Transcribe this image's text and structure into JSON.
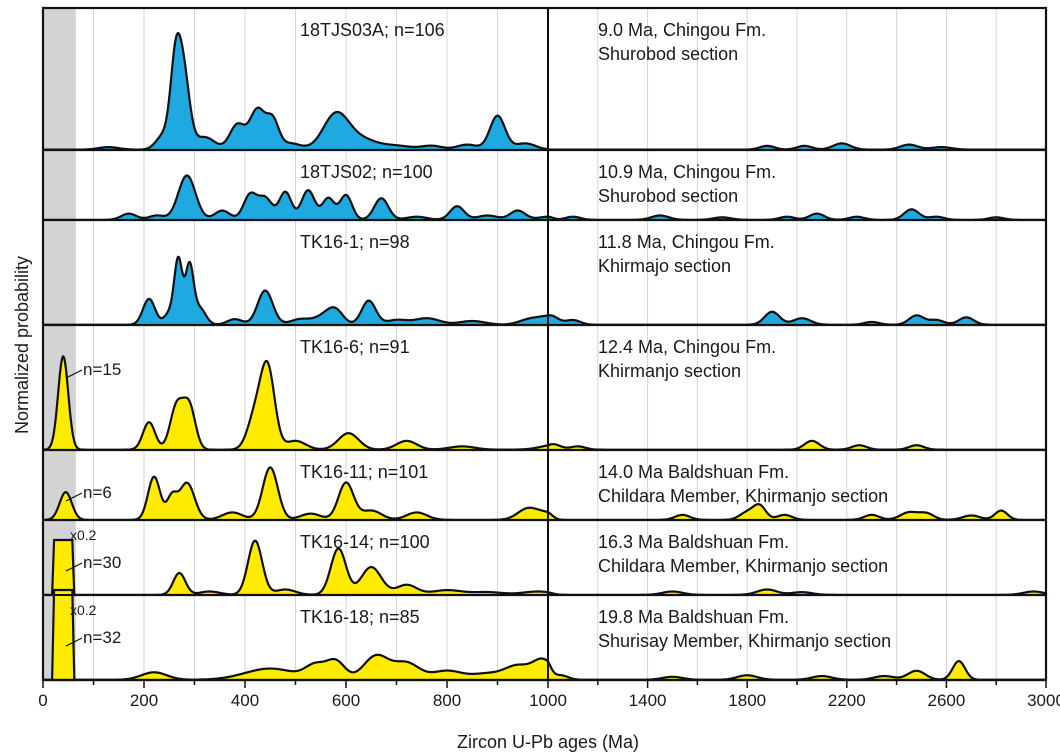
{
  "chart_data": {
    "type": "area",
    "x_axis": {
      "label": "Zircon U-Pb ages (Ma)",
      "ticks": [
        "0",
        "200",
        "400",
        "600",
        "800",
        "1000",
        "1400",
        "1800",
        "2200",
        "2600",
        "3000"
      ],
      "break_scale": "0–1000 Ma linear, 1000–3000 Ma compressed scale"
    },
    "y_axis": {
      "label": "Normalized  probability"
    },
    "shaded_band_ma": [
      0,
      65
    ],
    "grid": true,
    "panels": [
      {
        "sample": "18TJS03A; n=106",
        "context": [
          "9.0 Ma, Chingou Fm.",
          "Shurobod section"
        ],
        "fill": "#1fa9e1",
        "n_label": "",
        "scale_note": "",
        "peaks": [
          [
            130,
            0.02,
            20
          ],
          [
            240,
            0.12,
            15
          ],
          [
            262,
            0.58,
            10
          ],
          [
            278,
            0.6,
            12
          ],
          [
            320,
            0.1,
            20
          ],
          [
            385,
            0.2,
            15
          ],
          [
            425,
            0.32,
            15
          ],
          [
            455,
            0.22,
            12
          ],
          [
            490,
            0.05,
            20
          ],
          [
            580,
            0.28,
            25
          ],
          [
            630,
            0.08,
            30
          ],
          [
            700,
            0.03,
            30
          ],
          [
            770,
            0.03,
            20
          ],
          [
            840,
            0.04,
            20
          ],
          [
            900,
            0.27,
            15
          ],
          [
            955,
            0.05,
            20
          ],
          [
            1880,
            0.03,
            30
          ],
          [
            2030,
            0.03,
            30
          ],
          [
            2180,
            0.05,
            35
          ],
          [
            2450,
            0.04,
            35
          ],
          [
            2580,
            0.02,
            40
          ]
        ]
      },
      {
        "sample": "18TJS02; n=100",
        "context": [
          "10.9 Ma, Chingou Fm.",
          "Shurobod section"
        ],
        "fill": "#1fa9e1",
        "n_label": "",
        "scale_note": "",
        "peaks": [
          [
            170,
            0.1,
            15
          ],
          [
            225,
            0.07,
            15
          ],
          [
            285,
            0.72,
            17
          ],
          [
            355,
            0.15,
            15
          ],
          [
            410,
            0.4,
            13
          ],
          [
            440,
            0.35,
            14
          ],
          [
            480,
            0.45,
            12
          ],
          [
            525,
            0.48,
            13
          ],
          [
            565,
            0.35,
            12
          ],
          [
            600,
            0.4,
            12
          ],
          [
            670,
            0.35,
            14
          ],
          [
            740,
            0.05,
            20
          ],
          [
            820,
            0.22,
            14
          ],
          [
            880,
            0.07,
            20
          ],
          [
            940,
            0.15,
            15
          ],
          [
            1000,
            0.05,
            20
          ],
          [
            1100,
            0.05,
            30
          ],
          [
            1450,
            0.07,
            35
          ],
          [
            1700,
            0.04,
            35
          ],
          [
            1960,
            0.05,
            30
          ],
          [
            2080,
            0.1,
            30
          ],
          [
            2240,
            0.05,
            30
          ],
          [
            2460,
            0.17,
            30
          ],
          [
            2560,
            0.05,
            30
          ],
          [
            2800,
            0.04,
            30
          ]
        ]
      },
      {
        "sample": "TK16-1; n=98",
        "context": [
          "11.8 Ma, Chingou Fm.",
          "Khirmajo section"
        ],
        "fill": "#1fa9e1",
        "n_label": "",
        "scale_note": "",
        "peaks": [
          [
            210,
            0.28,
            12
          ],
          [
            250,
            0.12,
            10
          ],
          [
            268,
            0.7,
            8
          ],
          [
            290,
            0.62,
            8
          ],
          [
            310,
            0.18,
            12
          ],
          [
            380,
            0.06,
            15
          ],
          [
            440,
            0.37,
            15
          ],
          [
            510,
            0.06,
            20
          ],
          [
            560,
            0.1,
            20
          ],
          [
            580,
            0.12,
            15
          ],
          [
            645,
            0.26,
            14
          ],
          [
            700,
            0.05,
            20
          ],
          [
            760,
            0.07,
            25
          ],
          [
            850,
            0.04,
            25
          ],
          [
            960,
            0.04,
            20
          ],
          [
            1010,
            0.1,
            30
          ],
          [
            1100,
            0.05,
            30
          ],
          [
            1900,
            0.14,
            30
          ],
          [
            2020,
            0.07,
            35
          ],
          [
            2300,
            0.03,
            30
          ],
          [
            2480,
            0.1,
            30
          ],
          [
            2560,
            0.05,
            30
          ],
          [
            2680,
            0.08,
            30
          ]
        ]
      },
      {
        "sample": "TK16-6; n=91",
        "context": [
          "12.4 Ma,   Chingou Fm.",
          "Khirmanjo section"
        ],
        "fill": "#ffeb00",
        "n_label": "n=15",
        "scale_note": "",
        "peaks": [
          [
            40,
            0.85,
            10
          ],
          [
            210,
            0.25,
            12
          ],
          [
            265,
            0.4,
            13
          ],
          [
            290,
            0.38,
            12
          ],
          [
            420,
            0.3,
            15
          ],
          [
            445,
            0.72,
            14
          ],
          [
            500,
            0.08,
            20
          ],
          [
            605,
            0.15,
            20
          ],
          [
            720,
            0.08,
            20
          ],
          [
            830,
            0.03,
            25
          ],
          [
            1020,
            0.05,
            30
          ],
          [
            1120,
            0.03,
            30
          ],
          [
            2060,
            0.08,
            30
          ],
          [
            2250,
            0.04,
            30
          ],
          [
            2480,
            0.04,
            30
          ]
        ]
      },
      {
        "sample": "TK16-11; n=101",
        "context": [
          "14.0 Ma Baldshuan Fm.",
          "Childara Member, Khirmanjo section"
        ],
        "fill": "#ffeb00",
        "n_label": "n=6",
        "scale_note": "",
        "peaks": [
          [
            45,
            0.45,
            12
          ],
          [
            220,
            0.7,
            12
          ],
          [
            255,
            0.35,
            10
          ],
          [
            285,
            0.6,
            15
          ],
          [
            375,
            0.12,
            20
          ],
          [
            450,
            0.85,
            15
          ],
          [
            530,
            0.1,
            20
          ],
          [
            600,
            0.6,
            15
          ],
          [
            650,
            0.15,
            20
          ],
          [
            740,
            0.12,
            20
          ],
          [
            960,
            0.18,
            20
          ],
          [
            1000,
            0.1,
            20
          ],
          [
            1540,
            0.08,
            30
          ],
          [
            1800,
            0.12,
            30
          ],
          [
            1850,
            0.22,
            25
          ],
          [
            1950,
            0.08,
            30
          ],
          [
            2300,
            0.08,
            30
          ],
          [
            2450,
            0.12,
            35
          ],
          [
            2520,
            0.1,
            30
          ],
          [
            2700,
            0.07,
            35
          ],
          [
            2820,
            0.15,
            25
          ]
        ]
      },
      {
        "sample": "TK16-14; n=100",
        "context": [
          "16.3 Ma Baldshuan Fm.",
          "Childara Member, Khirmanjo section"
        ],
        "fill": "#ffeb00",
        "n_label": "n=30",
        "scale_note": "x0.2",
        "peaks": [
          [
            270,
            0.33,
            12
          ],
          [
            330,
            0.05,
            20
          ],
          [
            420,
            0.82,
            14
          ],
          [
            480,
            0.08,
            20
          ],
          [
            585,
            0.7,
            15
          ],
          [
            650,
            0.42,
            20
          ],
          [
            720,
            0.15,
            20
          ],
          [
            800,
            0.07,
            30
          ],
          [
            880,
            0.04,
            30
          ],
          [
            980,
            0.05,
            30
          ],
          [
            1500,
            0.05,
            40
          ],
          [
            1880,
            0.08,
            40
          ],
          [
            2020,
            0.04,
            40
          ],
          [
            2950,
            0.05,
            40
          ]
        ]
      },
      {
        "sample": "TK16-18; n=85",
        "context": [
          "19.8 Ma Baldshuan Fm.",
          "Shurisay Member, Khirmanjo section"
        ],
        "fill": "#ffeb00",
        "n_label": "n=32",
        "scale_note": "x0.2",
        "peaks": [
          [
            220,
            0.1,
            25
          ],
          [
            450,
            0.15,
            50
          ],
          [
            540,
            0.18,
            20
          ],
          [
            580,
            0.24,
            18
          ],
          [
            660,
            0.32,
            25
          ],
          [
            720,
            0.22,
            25
          ],
          [
            800,
            0.12,
            30
          ],
          [
            880,
            0.08,
            30
          ],
          [
            940,
            0.18,
            25
          ],
          [
            990,
            0.25,
            20
          ],
          [
            1050,
            0.06,
            30
          ],
          [
            1500,
            0.04,
            40
          ],
          [
            1800,
            0.06,
            40
          ],
          [
            2100,
            0.05,
            40
          ],
          [
            2350,
            0.05,
            40
          ],
          [
            2480,
            0.12,
            35
          ],
          [
            2650,
            0.25,
            25
          ]
        ]
      }
    ]
  }
}
